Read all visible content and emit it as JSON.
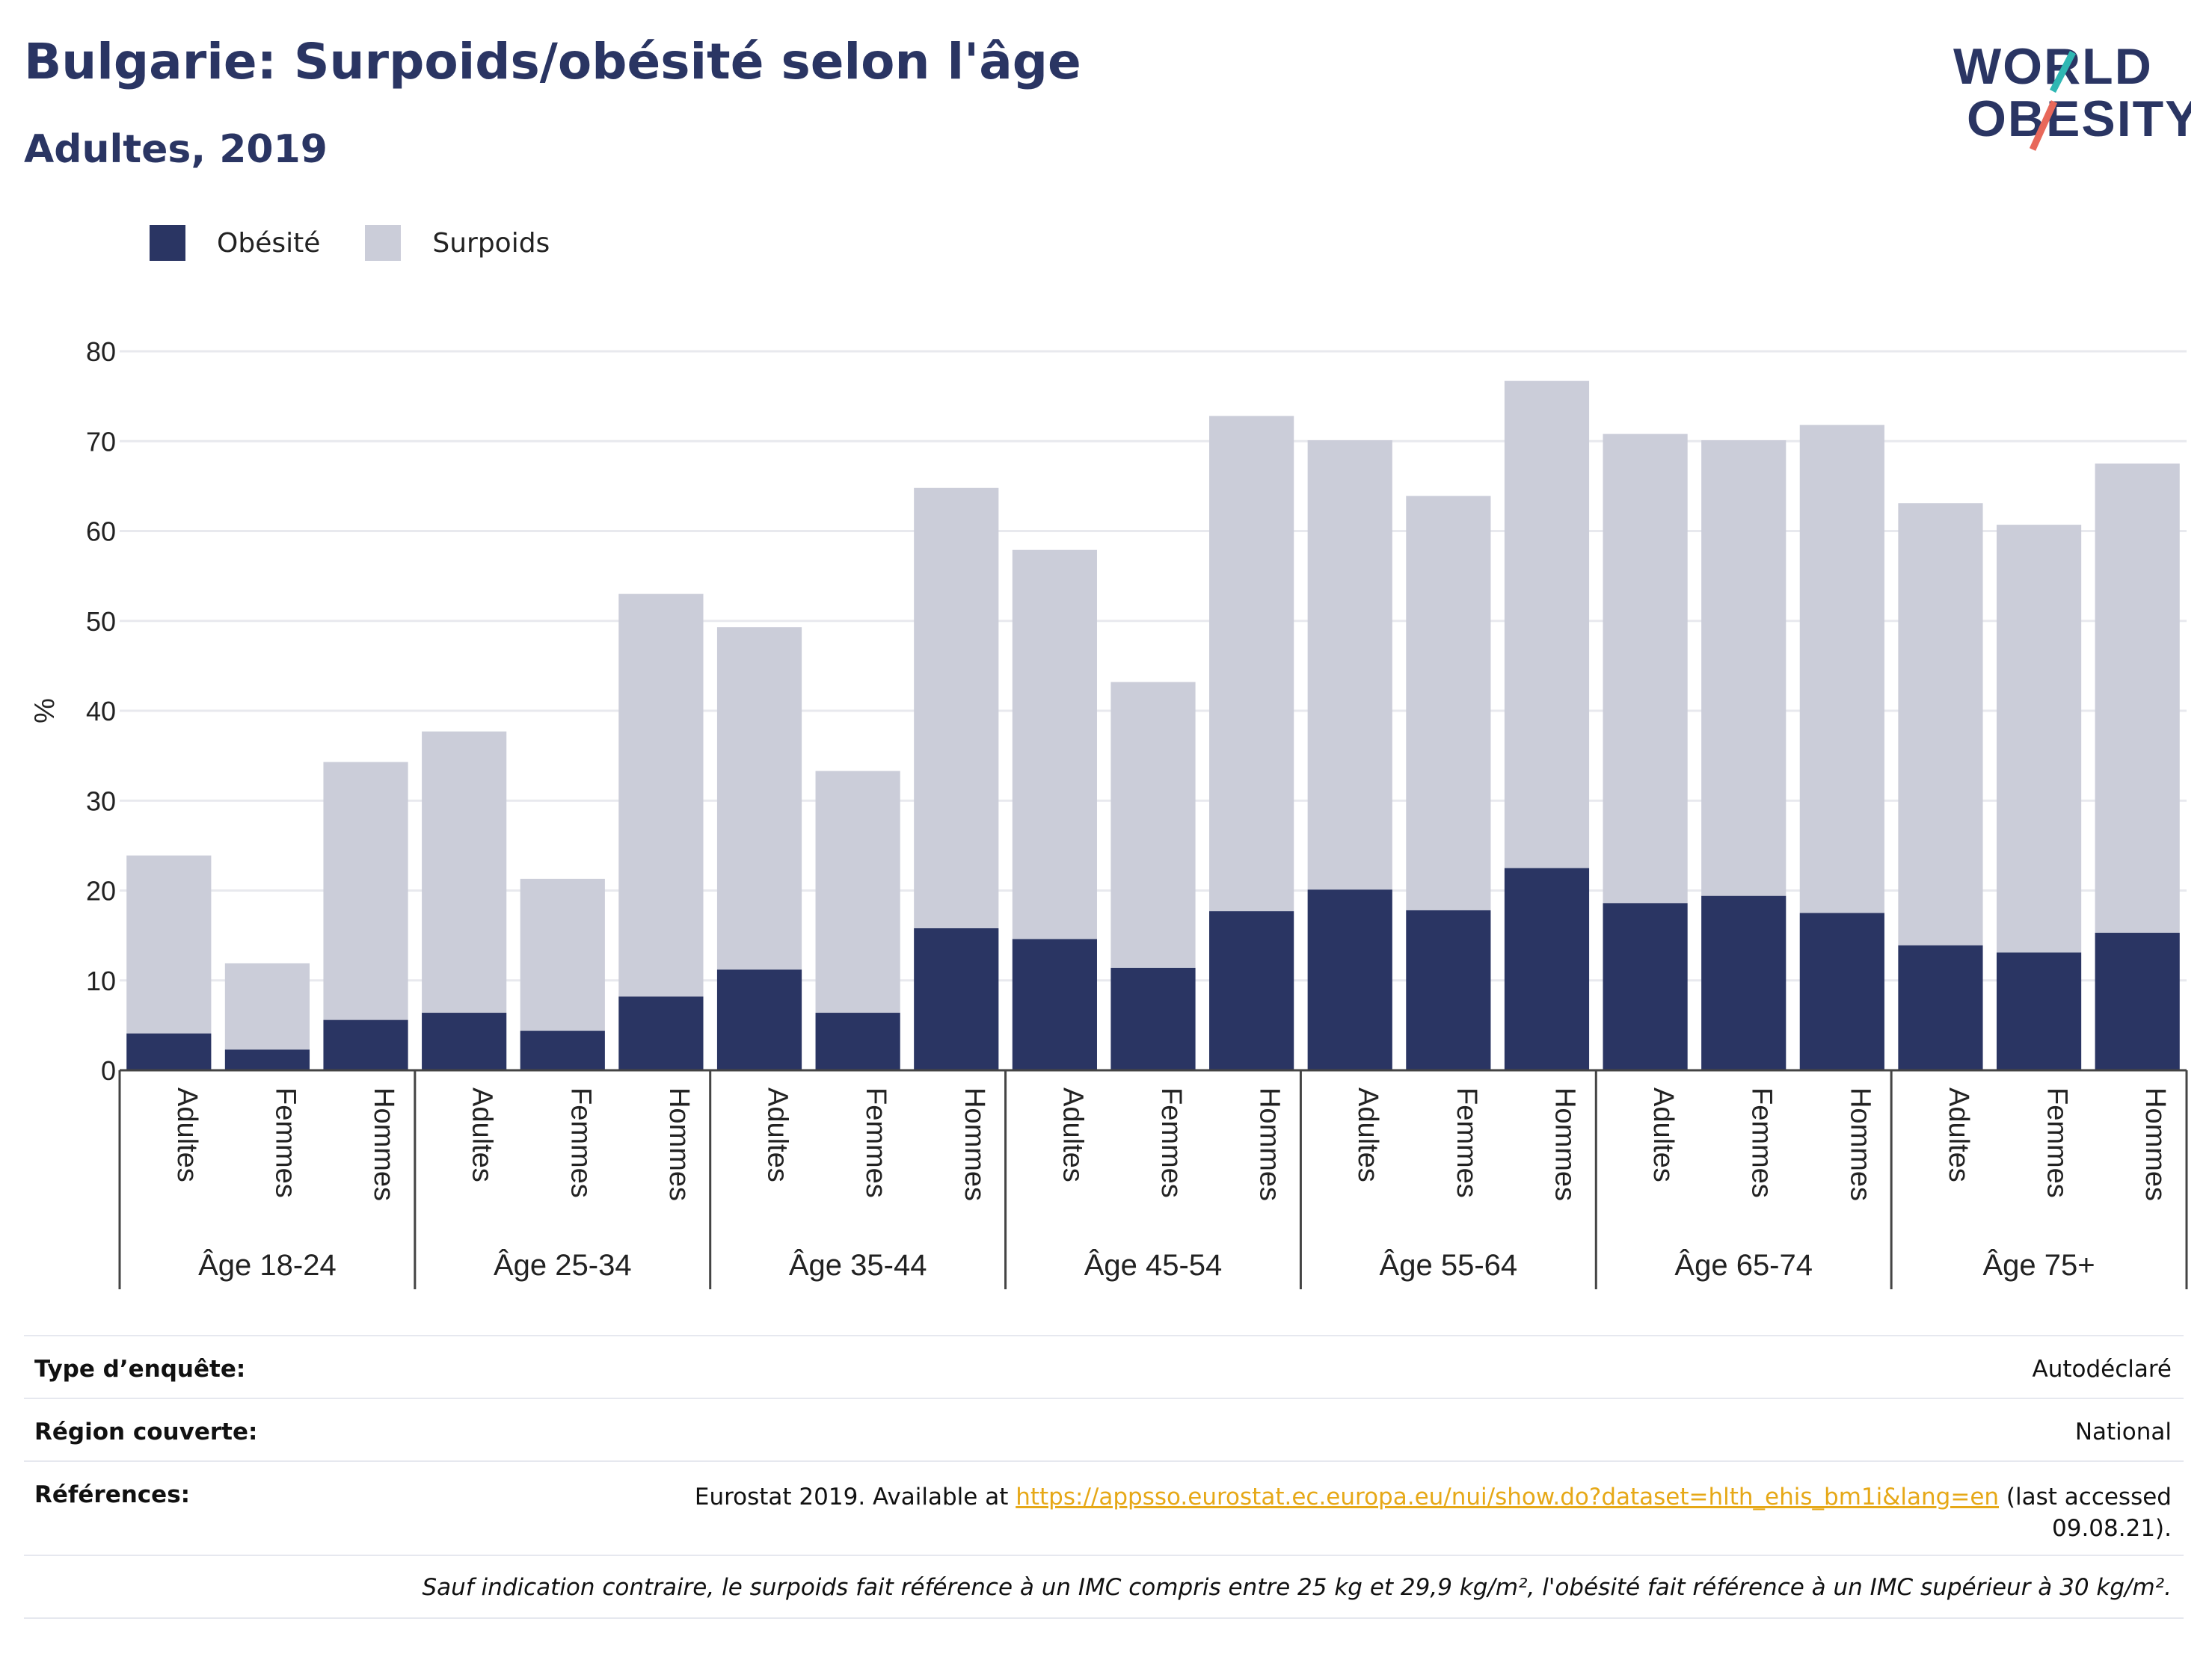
{
  "title": "Bulgarie: Surpoids/obésité selon l'âge",
  "subtitle": "Adultes, 2019",
  "logo": {
    "line1": "WORLD",
    "line2": "OBESITY"
  },
  "colors": {
    "obesity": "#2a3563",
    "overweight": "#cbcdd9",
    "title": "#2a3563",
    "link": "#e6a817",
    "logo_teal": "#2fb7b3",
    "logo_red": "#e8685a"
  },
  "chart_data": {
    "type": "bar",
    "stacked": true,
    "ylabel": "%",
    "ylim": [
      0,
      80
    ],
    "yticks": [
      0,
      10,
      20,
      30,
      40,
      50,
      60,
      70,
      80
    ],
    "grid": true,
    "legend_position": "top-left",
    "groups": [
      "Âge 18-24",
      "Âge 25-34",
      "Âge 35-44",
      "Âge 45-54",
      "Âge 55-64",
      "Âge 65-74",
      "Âge 75+"
    ],
    "subcategories": [
      "Adultes",
      "Femmes",
      "Hommes"
    ],
    "series": [
      {
        "name": "Obésité",
        "color": "#2a3563",
        "values": [
          4.1,
          2.3,
          5.6,
          6.4,
          4.4,
          8.2,
          11.2,
          6.4,
          15.8,
          14.6,
          11.4,
          17.7,
          20.1,
          17.8,
          22.5,
          18.6,
          19.4,
          17.5,
          13.9,
          13.1,
          15.3
        ]
      },
      {
        "name": "Surpoids",
        "color": "#cbcdd9",
        "values": [
          19.8,
          9.6,
          28.7,
          31.3,
          16.9,
          44.8,
          38.1,
          26.9,
          49.0,
          43.3,
          31.8,
          55.1,
          50.0,
          46.1,
          54.2,
          52.2,
          50.7,
          54.3,
          49.2,
          47.6,
          52.2
        ]
      }
    ]
  },
  "info": {
    "survey_label": "Type d’enquête:",
    "survey_value": "Autodéclaré",
    "region_label": "Région couverte:",
    "region_value": "National",
    "ref_label": "Références:",
    "ref_prefix": "Eurostat 2019. Available at ",
    "ref_link": "https://appsso.eurostat.ec.europa.eu/nui/show.do?dataset=hlth_ehis_bm1i&lang=en",
    "ref_suffix": " (last accessed",
    "ref_date": "09.08.21).",
    "note": "Sauf indication contraire, le surpoids fait référence à un IMC compris entre 25 kg et 29,9 kg/m², l'obésité fait référence à un IMC supérieur à 30 kg/m²."
  }
}
